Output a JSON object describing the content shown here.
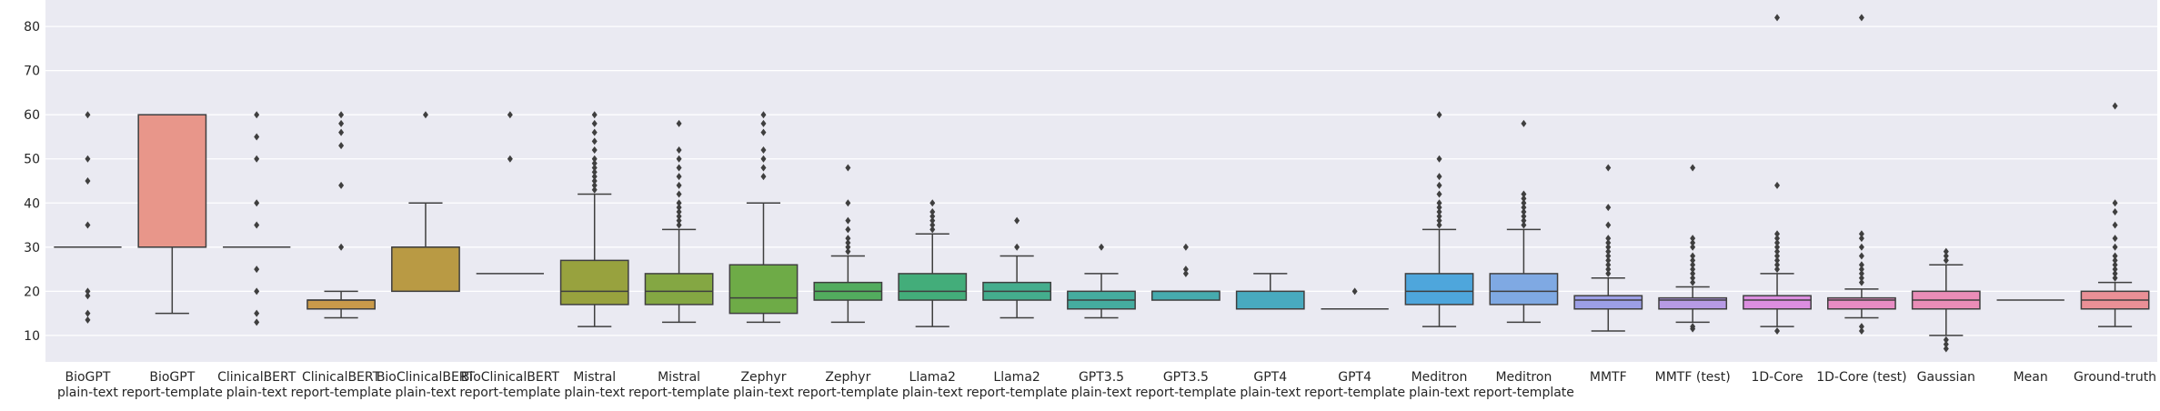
{
  "chart_data": {
    "type": "box",
    "title": "",
    "xlabel": "",
    "ylabel": "",
    "ylim": [
      4,
      86
    ],
    "yticks": [
      10,
      20,
      30,
      40,
      50,
      60,
      70,
      80
    ],
    "grid": true,
    "legend": "none",
    "colors": {
      "background": "#EAEAF2",
      "grid": "#FFFFFF",
      "line": "#3F3F3F",
      "text": "#262626"
    },
    "categories": [
      {
        "label": [
          "BioGPT",
          "plain-text"
        ],
        "color": "#8A8A8A",
        "q1": 30,
        "median": 30,
        "q3": 30,
        "whislo": 30,
        "whishi": 30,
        "fliers": [
          13.5,
          15,
          19,
          20,
          35,
          45,
          50,
          60
        ]
      },
      {
        "label": [
          "BioGPT",
          "report-template"
        ],
        "color": "#E8968A",
        "q1": 30,
        "median": 30,
        "q3": 60,
        "whislo": 15,
        "whishi": 60,
        "fliers": []
      },
      {
        "label": [
          "ClinicalBERT",
          "plain-text"
        ],
        "color": "#9A9A9A",
        "q1": 30,
        "median": 30,
        "q3": 30,
        "whislo": 30,
        "whishi": 30,
        "fliers": [
          13,
          15,
          20,
          25,
          35,
          40,
          50,
          55,
          60
        ]
      },
      {
        "label": [
          "ClinicalBERT",
          "report-template"
        ],
        "color": "#C99A4A",
        "q1": 16,
        "median": 18,
        "q3": 18,
        "whislo": 14,
        "whishi": 20,
        "fliers": [
          30,
          44,
          53,
          56,
          58,
          60
        ]
      },
      {
        "label": [
          "BioClinicalBERT",
          "plain-text"
        ],
        "color": "#B99A44",
        "q1": 20,
        "median": 30,
        "q3": 30,
        "whislo": 20,
        "whishi": 40,
        "fliers": [
          60
        ]
      },
      {
        "label": [
          "BioClinicalBERT",
          "report-template"
        ],
        "color": "#A3A33D",
        "q1": 24,
        "median": 24,
        "q3": 24,
        "whislo": 24,
        "whishi": 24,
        "fliers": [
          50,
          60
        ]
      },
      {
        "label": [
          "Mistral",
          "plain-text"
        ],
        "color": "#98A23E",
        "q1": 17,
        "median": 20,
        "q3": 27,
        "whislo": 12,
        "whishi": 42,
        "fliers": [
          43,
          44,
          45,
          46,
          47,
          48,
          49,
          50,
          52,
          54,
          56,
          58,
          60
        ]
      },
      {
        "label": [
          "Mistral",
          "report-template"
        ],
        "color": "#84A743",
        "q1": 17,
        "median": 20,
        "q3": 24,
        "whislo": 13,
        "whishi": 34,
        "fliers": [
          35,
          36,
          37,
          38,
          39,
          40,
          42,
          44,
          46,
          48,
          50,
          52,
          58
        ]
      },
      {
        "label": [
          "Zephyr",
          "plain-text"
        ],
        "color": "#6EAB47",
        "q1": 15,
        "median": 18.5,
        "q3": 26,
        "whislo": 13,
        "whishi": 40,
        "fliers": [
          46,
          48,
          50,
          52,
          56,
          58,
          60
        ]
      },
      {
        "label": [
          "Zephyr",
          "report-template"
        ],
        "color": "#52AC5E",
        "q1": 18,
        "median": 20,
        "q3": 22,
        "whislo": 13,
        "whishi": 28,
        "fliers": [
          29,
          30,
          31,
          32,
          34,
          36,
          40,
          48
        ]
      },
      {
        "label": [
          "Llama2",
          "plain-text"
        ],
        "color": "#43AD7A",
        "q1": 18,
        "median": 20,
        "q3": 24,
        "whislo": 12,
        "whishi": 33,
        "fliers": [
          34,
          35,
          36,
          37,
          38,
          40
        ]
      },
      {
        "label": [
          "Llama2",
          "report-template"
        ],
        "color": "#44AD8D",
        "q1": 18,
        "median": 20,
        "q3": 22,
        "whislo": 14,
        "whishi": 28,
        "fliers": [
          30,
          36
        ]
      },
      {
        "label": [
          "GPT3.5",
          "plain-text"
        ],
        "color": "#45AC9F",
        "q1": 16,
        "median": 18,
        "q3": 20,
        "whislo": 14,
        "whishi": 24,
        "fliers": [
          30
        ]
      },
      {
        "label": [
          "GPT3.5",
          "report-template"
        ],
        "color": "#46ABAE",
        "q1": 18,
        "median": 20,
        "q3": 20,
        "whislo": 18,
        "whishi": 20,
        "fliers": [
          24,
          25,
          30
        ]
      },
      {
        "label": [
          "GPT4",
          "plain-text"
        ],
        "color": "#48AABF",
        "q1": 16,
        "median": 16,
        "q3": 20,
        "whislo": 16,
        "whishi": 24,
        "fliers": []
      },
      {
        "label": [
          "GPT4",
          "report-template"
        ],
        "color": "#4AA8CF",
        "q1": 16,
        "median": 16,
        "q3": 16,
        "whislo": 16,
        "whishi": 16,
        "fliers": [
          20
        ]
      },
      {
        "label": [
          "Meditron",
          "plain-text"
        ],
        "color": "#4EA6DC",
        "q1": 17,
        "median": 20,
        "q3": 24,
        "whislo": 12,
        "whishi": 34,
        "fliers": [
          35,
          36,
          37,
          38,
          39,
          40,
          42,
          44,
          46,
          50,
          60
        ]
      },
      {
        "label": [
          "Meditron",
          "report-template"
        ],
        "color": "#7FA9E3",
        "q1": 17,
        "median": 20,
        "q3": 24,
        "whislo": 13,
        "whishi": 34,
        "fliers": [
          35,
          36,
          37,
          38,
          39,
          40,
          41,
          42,
          58
        ]
      },
      {
        "label": [
          "MMTF",
          ""
        ],
        "color": "#9C9FE6",
        "q1": 16,
        "median": 18,
        "q3": 19,
        "whislo": 11,
        "whishi": 23,
        "fliers": [
          24,
          25,
          26,
          27,
          28,
          29,
          30,
          31,
          32,
          35,
          39,
          48
        ]
      },
      {
        "label": [
          "MMTF (test)",
          ""
        ],
        "color": "#B79BE5",
        "q1": 16,
        "median": 18,
        "q3": 18.5,
        "whislo": 13,
        "whishi": 21,
        "fliers": [
          11.5,
          12,
          22,
          23,
          24,
          25,
          26,
          27,
          28,
          30,
          31,
          32,
          48
        ]
      },
      {
        "label": [
          "1D-Core",
          ""
        ],
        "color": "#DC8EE0",
        "q1": 16,
        "median": 18,
        "q3": 19,
        "whislo": 12,
        "whishi": 24,
        "fliers": [
          11,
          25,
          26,
          27,
          28,
          29,
          30,
          31,
          32,
          33,
          44,
          82
        ]
      },
      {
        "label": [
          "1D-Core (test)",
          ""
        ],
        "color": "#E88CC4",
        "q1": 16,
        "median": 18,
        "q3": 18.5,
        "whislo": 14,
        "whishi": 20.5,
        "fliers": [
          11,
          12,
          22,
          23,
          24,
          25,
          26,
          28,
          30,
          32,
          33,
          82
        ]
      },
      {
        "label": [
          "Gaussian",
          ""
        ],
        "color": "#EA8DB7",
        "q1": 16,
        "median": 18,
        "q3": 20,
        "whislo": 10,
        "whishi": 26,
        "fliers": [
          7,
          8,
          9,
          27,
          28,
          29
        ]
      },
      {
        "label": [
          "Mean",
          ""
        ],
        "color": "#EB8FA6",
        "q1": 18,
        "median": 18,
        "q3": 18,
        "whislo": 18,
        "whishi": 18,
        "fliers": []
      },
      {
        "label": [
          "Ground-truth",
          ""
        ],
        "color": "#EA9096",
        "q1": 16,
        "median": 18,
        "q3": 20,
        "whislo": 12,
        "whishi": 22,
        "fliers": [
          23,
          24,
          25,
          26,
          27,
          28,
          30,
          32,
          35,
          38,
          40,
          62
        ]
      }
    ]
  }
}
